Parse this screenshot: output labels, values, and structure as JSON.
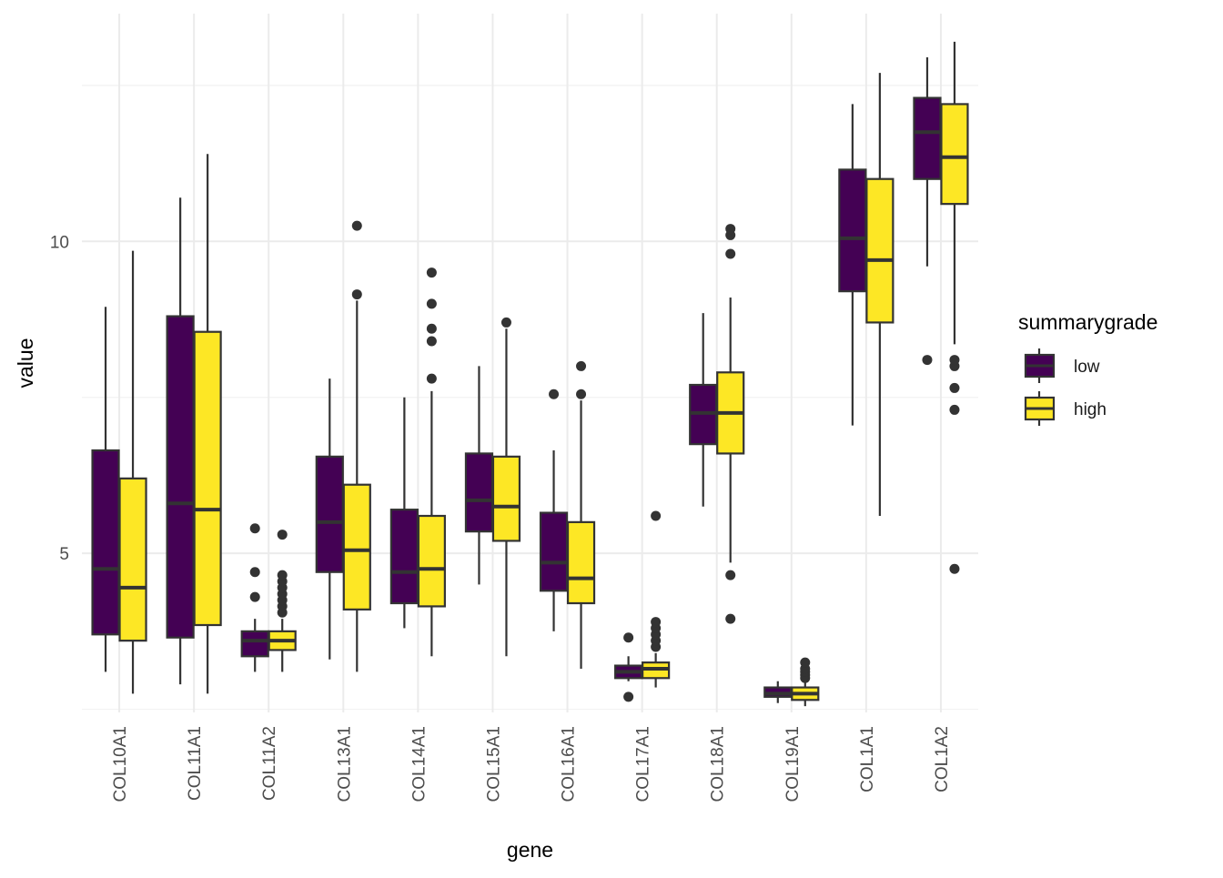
{
  "chart_data": {
    "type": "boxplot",
    "xlabel": "gene",
    "ylabel": "value",
    "ylim": [
      2.45,
      13.65
    ],
    "y_ticks": [
      5,
      10
    ],
    "y_tick_labels": [
      "5",
      "10"
    ],
    "grid": true,
    "legend": {
      "title": "summarygrade",
      "position": "right",
      "entries": [
        {
          "key": "low",
          "label": "low",
          "color": "#440154"
        },
        {
          "key": "high",
          "label": "high",
          "color": "#FDE725"
        }
      ]
    },
    "categories": [
      "COL10A1",
      "COL11A1",
      "COL11A2",
      "COL13A1",
      "COL14A1",
      "COL15A1",
      "COL16A1",
      "COL17A1",
      "COL18A1",
      "COL19A1",
      "COL1A1",
      "COL1A2"
    ],
    "series": [
      {
        "name": "low",
        "color": "#440154",
        "boxes": [
          {
            "whisker_low": 3.1,
            "q1": 3.7,
            "median": 4.75,
            "q3": 6.65,
            "whisker_high": 8.95,
            "outliers": []
          },
          {
            "whisker_low": 2.9,
            "q1": 3.65,
            "median": 5.8,
            "q3": 8.8,
            "whisker_high": 10.7,
            "outliers": []
          },
          {
            "whisker_low": 3.1,
            "q1": 3.35,
            "median": 3.6,
            "q3": 3.75,
            "whisker_high": 3.95,
            "outliers": [
              4.3,
              4.7,
              5.4
            ]
          },
          {
            "whisker_low": 3.3,
            "q1": 4.7,
            "median": 5.5,
            "q3": 6.55,
            "whisker_high": 7.8,
            "outliers": []
          },
          {
            "whisker_low": 3.8,
            "q1": 4.2,
            "median": 4.7,
            "q3": 5.7,
            "whisker_high": 7.5,
            "outliers": []
          },
          {
            "whisker_low": 4.5,
            "q1": 5.35,
            "median": 5.85,
            "q3": 6.6,
            "whisker_high": 8.0,
            "outliers": []
          },
          {
            "whisker_low": 3.75,
            "q1": 4.4,
            "median": 4.85,
            "q3": 5.65,
            "whisker_high": 6.65,
            "outliers": [
              7.55
            ]
          },
          {
            "whisker_low": 2.95,
            "q1": 3.0,
            "median": 3.1,
            "q3": 3.2,
            "whisker_high": 3.35,
            "outliers": [
              2.7,
              3.65
            ]
          },
          {
            "whisker_low": 5.75,
            "q1": 6.75,
            "median": 7.25,
            "q3": 7.7,
            "whisker_high": 8.85,
            "outliers": []
          },
          {
            "whisker_low": 2.6,
            "q1": 2.7,
            "median": 2.75,
            "q3": 2.85,
            "whisker_high": 2.95,
            "outliers": []
          },
          {
            "whisker_low": 7.05,
            "q1": 9.2,
            "median": 10.05,
            "q3": 11.15,
            "whisker_high": 12.2,
            "outliers": []
          },
          {
            "whisker_low": 9.6,
            "q1": 11.0,
            "median": 11.75,
            "q3": 12.3,
            "whisker_high": 12.95,
            "outliers": [
              8.1
            ]
          }
        ]
      },
      {
        "name": "high",
        "color": "#FDE725",
        "boxes": [
          {
            "whisker_low": 2.75,
            "q1": 3.6,
            "median": 4.45,
            "q3": 6.2,
            "whisker_high": 9.85,
            "outliers": []
          },
          {
            "whisker_low": 2.75,
            "q1": 3.85,
            "median": 5.7,
            "q3": 8.55,
            "whisker_high": 11.4,
            "outliers": []
          },
          {
            "whisker_low": 3.1,
            "q1": 3.45,
            "median": 3.6,
            "q3": 3.75,
            "whisker_high": 3.95,
            "outliers": [
              4.05,
              4.15,
              4.25,
              4.35,
              4.45,
              4.55,
              4.65,
              5.3
            ]
          },
          {
            "whisker_low": 3.1,
            "q1": 4.1,
            "median": 5.05,
            "q3": 6.1,
            "whisker_high": 9.05,
            "outliers": [
              9.15,
              10.25
            ]
          },
          {
            "whisker_low": 3.35,
            "q1": 4.15,
            "median": 4.75,
            "q3": 5.6,
            "whisker_high": 7.6,
            "outliers": [
              7.8,
              8.4,
              8.6,
              9.0,
              9.5
            ]
          },
          {
            "whisker_low": 3.35,
            "q1": 5.2,
            "median": 5.75,
            "q3": 6.55,
            "whisker_high": 8.6,
            "outliers": [
              8.7
            ]
          },
          {
            "whisker_low": 3.15,
            "q1": 4.2,
            "median": 4.6,
            "q3": 5.5,
            "whisker_high": 7.45,
            "outliers": [
              7.55,
              8.0
            ]
          },
          {
            "whisker_low": 2.85,
            "q1": 3.0,
            "median": 3.15,
            "q3": 3.25,
            "whisker_high": 3.4,
            "outliers": [
              3.5,
              3.6,
              3.7,
              3.8,
              3.9,
              5.6
            ]
          },
          {
            "whisker_low": 4.85,
            "q1": 6.6,
            "median": 7.25,
            "q3": 7.9,
            "whisker_high": 9.1,
            "outliers": [
              3.95,
              4.65,
              9.8,
              10.1,
              10.2
            ]
          },
          {
            "whisker_low": 2.55,
            "q1": 2.65,
            "median": 2.75,
            "q3": 2.85,
            "whisker_high": 2.95,
            "outliers": [
              3.0,
              3.05,
              3.1,
              3.15,
              3.25
            ]
          },
          {
            "whisker_low": 5.6,
            "q1": 8.7,
            "median": 9.7,
            "q3": 11.0,
            "whisker_high": 12.7,
            "outliers": []
          },
          {
            "whisker_low": 8.35,
            "q1": 10.6,
            "median": 11.35,
            "q3": 12.2,
            "whisker_high": 13.2,
            "outliers": [
              4.75,
              7.3,
              7.65,
              8.0,
              8.1
            ]
          }
        ]
      }
    ]
  }
}
